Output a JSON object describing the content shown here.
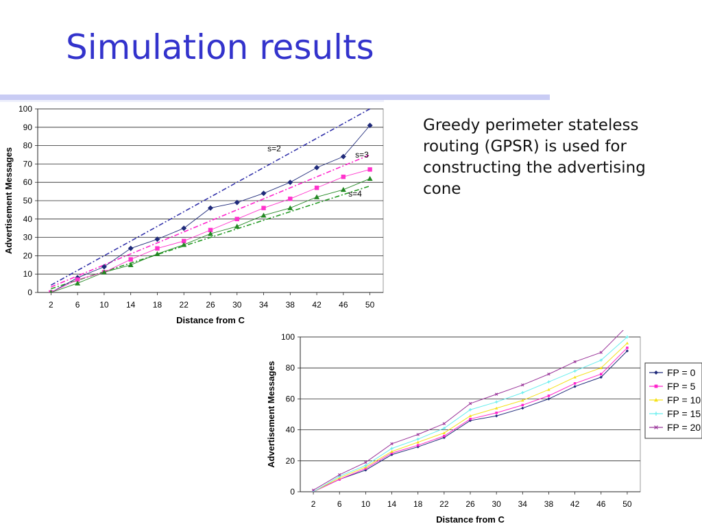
{
  "slide": {
    "title": "Simulation results",
    "description": "Greedy perimeter stateless routing (GPSR) is used for constructing the advertising cone"
  },
  "chart_data": [
    {
      "type": "line",
      "xlabel": "Distance from C",
      "ylabel": "Advertisement Messages",
      "categories": [
        "2",
        "6",
        "10",
        "14",
        "18",
        "22",
        "26",
        "30",
        "34",
        "38",
        "42",
        "46",
        "50"
      ],
      "ylim": [
        0,
        100
      ],
      "yticks": [
        0,
        10,
        20,
        30,
        40,
        50,
        60,
        70,
        80,
        90,
        100
      ],
      "grid": true,
      "series": [
        {
          "values": [
            0,
            8,
            14,
            24,
            29,
            35,
            46,
            49,
            54,
            60,
            68,
            74,
            91
          ],
          "color": "#1f2a7a",
          "marker": "diamond"
        },
        {
          "values": [
            0,
            7,
            11,
            18,
            24,
            28,
            34,
            40,
            46,
            51,
            57,
            63,
            67
          ],
          "color": "#ff33cc",
          "marker": "square"
        },
        {
          "values": [
            0,
            5,
            11,
            15,
            21,
            26,
            32,
            36,
            42,
            46,
            52,
            56,
            62
          ],
          "color": "#228822",
          "marker": "triangle"
        }
      ],
      "reference_lines": [
        {
          "label": "s=2",
          "color": "#3333aa",
          "start": [
            2,
            4
          ],
          "end": [
            50,
            100
          ]
        },
        {
          "label": "s=3",
          "color": "#ff22cc",
          "start": [
            2,
            3
          ],
          "end": [
            50,
            75
          ]
        },
        {
          "label": "s=4",
          "color": "#229922",
          "start": [
            2,
            2
          ],
          "end": [
            50,
            58
          ]
        }
      ]
    },
    {
      "type": "line",
      "xlabel": "Distance from C",
      "ylabel": "Advertisement Messages",
      "categories": [
        "2",
        "6",
        "10",
        "14",
        "18",
        "22",
        "26",
        "30",
        "34",
        "38",
        "42",
        "46",
        "50"
      ],
      "ylim": [
        0,
        100
      ],
      "yticks": [
        0,
        20,
        40,
        60,
        80,
        100
      ],
      "grid": true,
      "legend": "right",
      "series": [
        {
          "name": "FP = 0",
          "values": [
            0,
            8,
            14,
            24,
            29,
            35,
            46,
            49,
            54,
            60,
            68,
            74,
            91
          ],
          "color": "#1f2a7a",
          "marker": "diamond"
        },
        {
          "name": "FP = 5",
          "values": [
            0,
            8,
            15,
            25,
            30,
            36,
            47,
            51,
            56,
            62,
            70,
            76,
            93
          ],
          "color": "#ff22cc",
          "marker": "square"
        },
        {
          "name": "FP = 10",
          "values": [
            0,
            9,
            16,
            26,
            32,
            38,
            49,
            54,
            59,
            66,
            74,
            80,
            96
          ],
          "color": "#f5e21a",
          "marker": "triangle"
        },
        {
          "name": "FP = 15",
          "values": [
            0,
            10,
            17,
            28,
            34,
            41,
            53,
            58,
            64,
            71,
            78,
            85,
            100
          ],
          "color": "#66eeee",
          "marker": "cross"
        },
        {
          "name": "FP = 20",
          "values": [
            1,
            11,
            19,
            31,
            37,
            44,
            57,
            63,
            69,
            76,
            84,
            90,
            107
          ],
          "color": "#993399",
          "marker": "x"
        }
      ]
    }
  ]
}
